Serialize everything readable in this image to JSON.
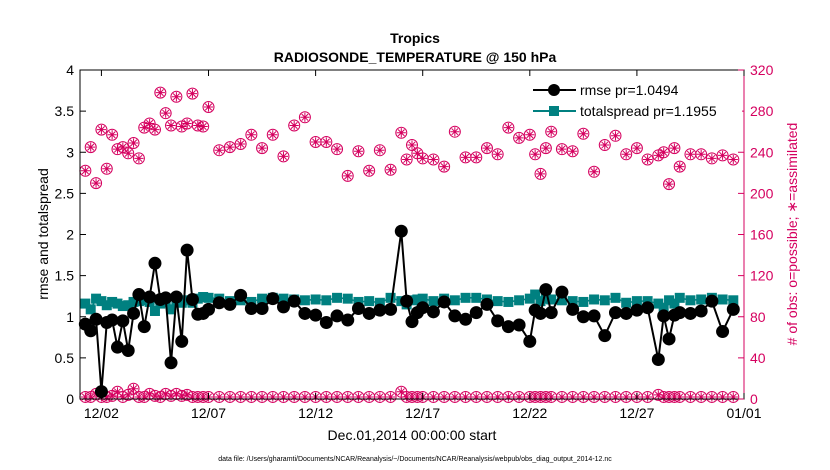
{
  "chart_data": {
    "type": "scatter",
    "title": "Tropics",
    "subtitle": "RADIOSONDE_TEMPERATURE @ 150 hPa",
    "xlabel": "Dec.01,2014 00:00:00 start",
    "ylabel_left": "rmse and totalspread",
    "ylabel_right": "# of obs: o=possible; ∗=assimilated",
    "footnote": "data file: /Users/gharamti/Documents/NCAR/Reanalysis/~/Documents/NCAR/Reanalysis/webpub/obs_diag_output_2014-12.nc",
    "x_tick_labels": [
      "12/02",
      "12/07",
      "12/12",
      "12/17",
      "12/22",
      "12/27",
      "01/01"
    ],
    "x_tick_values": [
      2,
      7,
      12,
      17,
      22,
      27,
      32
    ],
    "xlim": [
      1,
      32
    ],
    "ylim_left": [
      0,
      4
    ],
    "y_ticks_left": [
      "0",
      "0.5",
      "1",
      "1.5",
      "2",
      "2.5",
      "3",
      "3.5",
      "4"
    ],
    "ylim_right": [
      0,
      320
    ],
    "y_ticks_right": [
      "0",
      "40",
      "80",
      "120",
      "160",
      "200",
      "240",
      "280",
      "320"
    ],
    "colors": {
      "left_axis": "#000000",
      "right_axis": "#d5005f",
      "rmse": "#000000",
      "spread": "#008080",
      "obs": "#d5005f"
    },
    "legend": [
      {
        "name": "rmse pr=1.0494",
        "marker": "circle"
      },
      {
        "name": "totalspread pr=1.1955",
        "marker": "square"
      }
    ],
    "x": [
      1.25,
      1.5,
      1.75,
      2.0,
      2.25,
      2.5,
      2.75,
      3.0,
      3.25,
      3.5,
      3.75,
      4.0,
      4.25,
      4.5,
      4.75,
      5.0,
      5.25,
      5.5,
      5.75,
      6.0,
      6.25,
      6.5,
      6.75,
      7.0,
      7.5,
      8.0,
      8.5,
      9.0,
      9.5,
      10.0,
      10.5,
      11.0,
      11.5,
      12.0,
      12.5,
      13.0,
      13.5,
      14.0,
      14.5,
      15.0,
      15.5,
      16.0,
      16.25,
      16.5,
      16.75,
      17.0,
      17.5,
      18.0,
      18.5,
      19.0,
      19.5,
      20.0,
      20.5,
      21.0,
      21.5,
      22.0,
      22.25,
      22.5,
      22.75,
      23.0,
      23.5,
      24.0,
      24.5,
      25.0,
      25.5,
      26.0,
      26.5,
      27.0,
      27.5,
      28.0,
      28.25,
      28.5,
      28.75,
      29.0,
      29.5,
      30.0,
      30.5,
      31.0,
      31.5
    ],
    "series": [
      {
        "name": "rmse",
        "values": [
          0.91,
          0.83,
          0.97,
          0.09,
          0.93,
          0.96,
          0.63,
          0.95,
          0.59,
          1.04,
          1.27,
          0.88,
          1.24,
          1.65,
          1.21,
          1.23,
          0.44,
          1.24,
          0.7,
          1.81,
          1.21,
          1.03,
          1.04,
          1.09,
          1.17,
          1.15,
          1.26,
          1.1,
          1.1,
          1.22,
          1.12,
          1.19,
          1.04,
          1.02,
          0.93,
          1.01,
          0.96,
          1.1,
          1.04,
          1.08,
          1.09,
          2.04,
          1.19,
          0.94,
          1.05,
          1.11,
          1.06,
          1.18,
          1.01,
          0.97,
          1.05,
          1.15,
          0.95,
          0.88,
          0.9,
          0.7,
          1.08,
          1.04,
          1.33,
          1.05,
          1.3,
          1.09,
          1.0,
          1.01,
          0.77,
          1.05,
          1.04,
          1.08,
          1.11,
          0.48,
          1.01,
          0.73,
          1.02,
          1.05,
          1.04,
          1.07,
          1.19,
          0.82,
          1.09
        ]
      },
      {
        "name": "totalspread",
        "values": [
          1.16,
          1.09,
          1.22,
          1.19,
          1.14,
          1.18,
          1.16,
          1.13,
          1.14,
          1.18,
          1.19,
          1.2,
          1.18,
          1.07,
          1.16,
          1.18,
          1.09,
          1.2,
          1.17,
          1.2,
          1.17,
          1.22,
          1.24,
          1.23,
          1.22,
          1.19,
          1.2,
          1.18,
          1.22,
          1.23,
          1.22,
          1.21,
          1.2,
          1.21,
          1.2,
          1.23,
          1.22,
          1.18,
          1.19,
          1.17,
          1.23,
          1.19,
          1.15,
          1.2,
          1.21,
          1.22,
          1.19,
          1.22,
          1.2,
          1.23,
          1.23,
          1.21,
          1.19,
          1.18,
          1.2,
          1.22,
          1.27,
          1.19,
          1.22,
          1.21,
          1.2,
          1.19,
          1.18,
          1.21,
          1.2,
          1.23,
          1.17,
          1.19,
          1.19,
          1.16,
          1.11,
          1.2,
          1.16,
          1.23,
          1.2,
          1.21,
          1.23,
          1.21,
          1.2
        ]
      },
      {
        "name": "obs_possible",
        "values": [
          222,
          245,
          210,
          262,
          224,
          257,
          243,
          245,
          239,
          249,
          234,
          264,
          268,
          262,
          298,
          278,
          266,
          294,
          265,
          268,
          297,
          266,
          265,
          284,
          242,
          245,
          248,
          257,
          244,
          257,
          236,
          266,
          274,
          250,
          250,
          243,
          217,
          241,
          222,
          242,
          223,
          259,
          233,
          247,
          239,
          234,
          233,
          226,
          260,
          235,
          235,
          244,
          238,
          264,
          254,
          257,
          238,
          219,
          244,
          260,
          243,
          241,
          258,
          221,
          247,
          256,
          238,
          244,
          233,
          237,
          240,
          209,
          244,
          226,
          238,
          238,
          234,
          237,
          233
        ]
      },
      {
        "name": "obs_assimilated",
        "values": [
          222,
          245,
          210,
          262,
          224,
          257,
          243,
          245,
          239,
          249,
          234,
          264,
          268,
          262,
          298,
          278,
          266,
          294,
          265,
          268,
          297,
          266,
          265,
          284,
          242,
          245,
          248,
          257,
          244,
          257,
          236,
          266,
          274,
          250,
          250,
          243,
          217,
          241,
          222,
          242,
          223,
          259,
          233,
          247,
          239,
          234,
          233,
          226,
          260,
          235,
          235,
          244,
          238,
          264,
          254,
          257,
          238,
          219,
          244,
          260,
          243,
          241,
          258,
          221,
          247,
          256,
          238,
          244,
          233,
          237,
          240,
          209,
          244,
          226,
          238,
          238,
          234,
          237,
          233
        ]
      },
      {
        "name": "obs_rejected",
        "values": [
          2,
          2,
          5,
          2,
          2,
          3,
          7,
          2,
          4,
          10,
          2,
          2,
          5,
          3,
          2,
          5,
          3,
          5,
          3,
          4,
          2,
          2,
          2,
          2,
          2,
          2,
          2,
          2,
          2,
          2,
          2,
          2,
          2,
          2,
          2,
          2,
          2,
          2,
          2,
          2,
          2,
          7,
          2,
          2,
          2,
          2,
          2,
          2,
          2,
          2,
          2,
          2,
          2,
          2,
          2,
          2,
          2,
          2,
          2,
          2,
          2,
          2,
          2,
          2,
          2,
          2,
          2,
          2,
          2,
          4,
          2,
          2,
          2,
          2,
          2,
          2,
          2,
          2,
          2
        ]
      }
    ]
  }
}
